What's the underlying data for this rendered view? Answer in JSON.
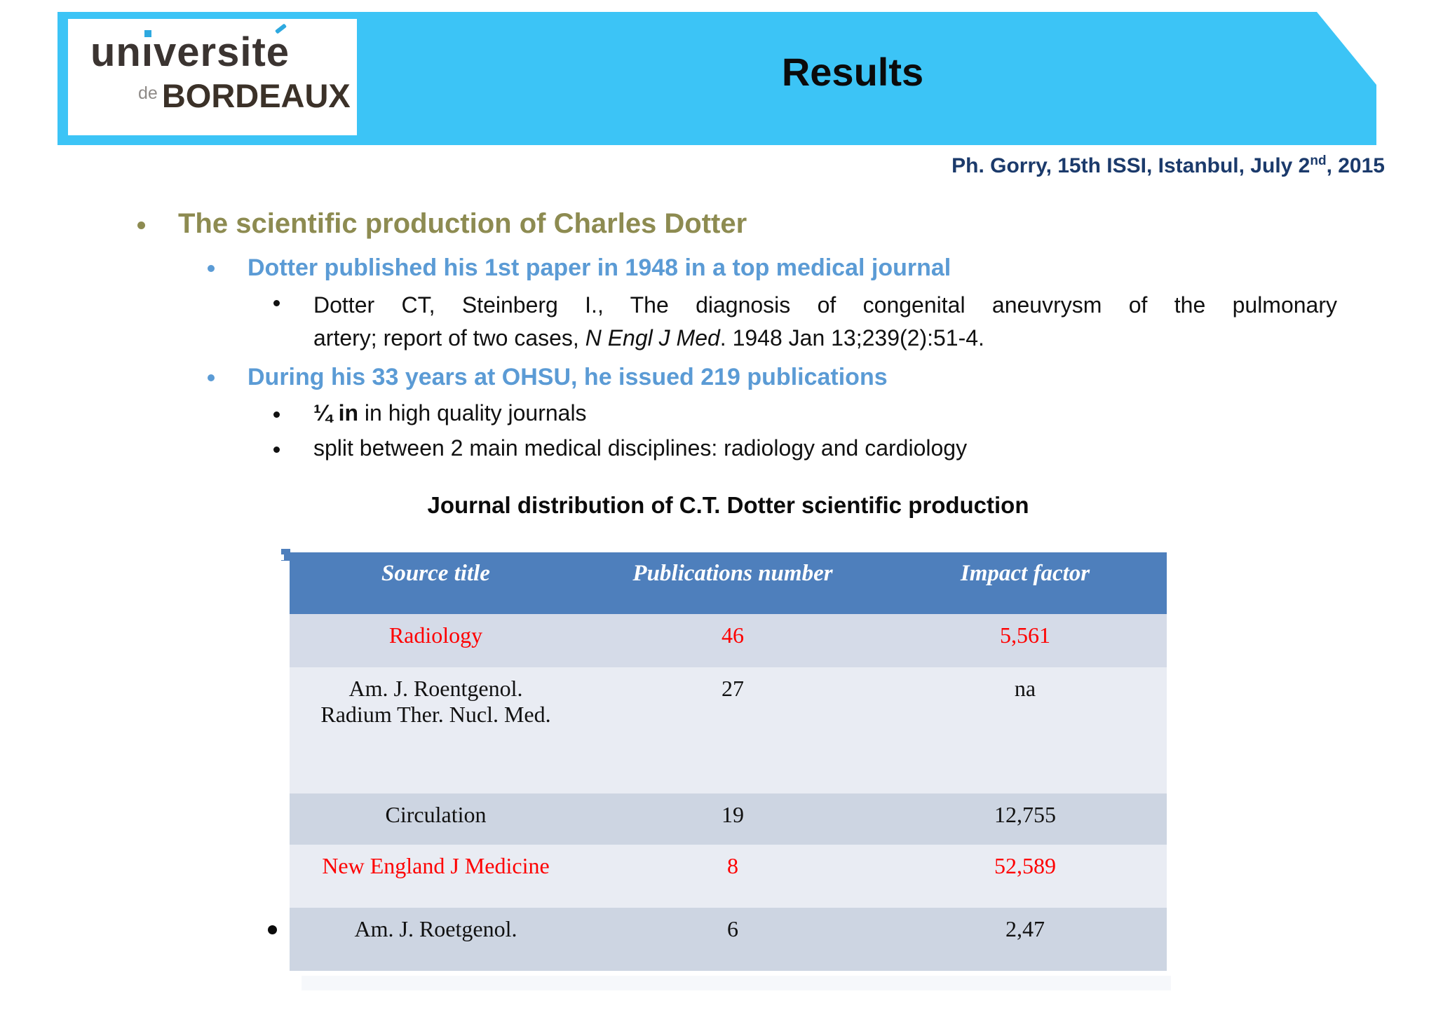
{
  "slide": {
    "banner_title": "Results",
    "logo": {
      "seg1": "un",
      "dotless_i": "ı",
      "seg2": "vers",
      "seg3": "it",
      "seg4": "e",
      "de": "de",
      "name": "BORDEAUX"
    },
    "attribution": {
      "prefix": "Ph. Gorry, 15th ISSI, Istanbul, July 2",
      "superscript": "nd",
      "suffix": ", 2015"
    },
    "bullets": {
      "level1": "The scientific production of Charles Dotter",
      "level2_first": "Dotter published his 1st paper in 1948 in a top medical journal",
      "citation": {
        "line1": "Dotter CT, Steinberg I., The diagnosis of congenital aneuvrysm of the pulmonary",
        "line2_pre": "artery; report of two cases, ",
        "line2_italic": "N Engl J Med",
        "line2_post": ". 1948 Jan 13;239(2):51-4."
      },
      "level2_second": "During his 33 years at OHSU, he issued 219 publications",
      "level3_quarter_bold": "¼ in",
      "level3_quarter_rest": " in high quality journals",
      "level3_split": "split between 2 main medical disciplines: radiology and cardiology"
    },
    "table": {
      "title": "Journal distribution of C.T. Dotter scientific production",
      "headers": [
        "Source title",
        "Publications number",
        "Impact factor"
      ],
      "rows": [
        {
          "source": "Radiology",
          "publications": "46",
          "impact": "5,561",
          "highlight": "red"
        },
        {
          "source_line1": "Am. J. Roentgenol.",
          "source_line2": "Radium Ther. Nucl. Med.",
          "publications": "27",
          "impact": "na",
          "highlight": "none"
        },
        {
          "source": "Circulation",
          "publications": "19",
          "impact": "12,755",
          "highlight": "none"
        },
        {
          "source": "New England J Medicine",
          "publications": "8",
          "impact": "52,589",
          "highlight": "red"
        },
        {
          "source": "Am. J. Roetgenol.",
          "publications": "6",
          "impact": "2,47",
          "highlight": "none"
        }
      ]
    },
    "colors": {
      "banner_cyan": "#3cc4f6",
      "attribution_navy": "#1b3a6b",
      "heading_olive": "#8d8b51",
      "bullet_blue": "#5b9bd5",
      "table_header_blue": "#4e7fbc",
      "highlight_red": "#fe0000",
      "row_shade_dark": "#cdd5e2",
      "row_shade_light": "#e9ecf3"
    }
  },
  "chart_data": {
    "type": "table",
    "title": "Journal distribution of C.T. Dotter scientific production",
    "columns": [
      "Source title",
      "Publications number",
      "Impact factor"
    ],
    "rows": [
      [
        "Radiology",
        46,
        "5,561"
      ],
      [
        "Am. J. Roentgenol. Radium Ther. Nucl. Med.",
        27,
        "na"
      ],
      [
        "Circulation",
        19,
        "12,755"
      ],
      [
        "New England J Medicine",
        8,
        "52,589"
      ],
      [
        "Am. J. Roetgenol.",
        6,
        "2,47"
      ]
    ]
  }
}
